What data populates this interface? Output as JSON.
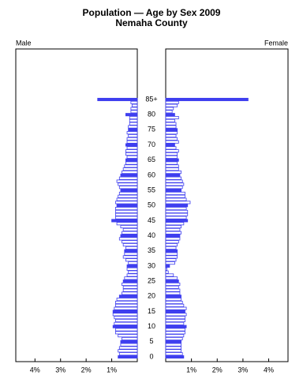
{
  "chart_data": {
    "type": "pyramid",
    "title": "Population — Age by Sex 2009",
    "subtitle": "Nemaha County",
    "categories": [
      "0",
      null,
      null,
      null,
      null,
      "5",
      null,
      null,
      null,
      null,
      "10",
      null,
      null,
      null,
      null,
      "15",
      null,
      null,
      null,
      null,
      "20",
      null,
      null,
      null,
      null,
      "25",
      null,
      null,
      null,
      null,
      "30",
      null,
      null,
      null,
      null,
      "35",
      null,
      null,
      null,
      null,
      "40",
      null,
      null,
      null,
      null,
      "45",
      null,
      null,
      null,
      null,
      "50",
      null,
      null,
      null,
      null,
      "55",
      null,
      null,
      null,
      null,
      "60",
      null,
      null,
      null,
      null,
      "65",
      null,
      null,
      null,
      null,
      "70",
      null,
      null,
      null,
      null,
      "75",
      null,
      null,
      null,
      null,
      "80",
      null,
      null,
      null,
      null,
      "85+"
    ],
    "series": [
      {
        "name": "Male",
        "color": "#3f3fef",
        "values": [
          0.75,
          0.7,
          0.75,
          0.7,
          0.65,
          0.65,
          0.6,
          0.75,
          0.85,
          0.85,
          0.95,
          0.9,
          0.85,
          0.9,
          0.95,
          0.95,
          0.9,
          0.85,
          0.85,
          0.8,
          0.7,
          0.6,
          0.55,
          0.55,
          0.6,
          0.55,
          0.5,
          0.4,
          0.35,
          0.4,
          0.4,
          0.35,
          0.45,
          0.55,
          0.5,
          0.5,
          0.45,
          0.55,
          0.6,
          0.7,
          0.65,
          0.6,
          0.55,
          0.65,
          0.8,
          1.0,
          0.85,
          0.85,
          0.85,
          0.85,
          0.8,
          0.85,
          0.8,
          0.75,
          0.7,
          0.65,
          0.7,
          0.75,
          0.8,
          0.7,
          0.65,
          0.6,
          0.55,
          0.5,
          0.45,
          0.45,
          0.4,
          0.45,
          0.45,
          0.4,
          0.45,
          0.4,
          0.4,
          0.35,
          0.4,
          0.35,
          0.35,
          0.3,
          0.3,
          0.3,
          0.45,
          0.25,
          0.25,
          0.2,
          0.25,
          1.55
        ]
      },
      {
        "name": "Female",
        "color": "#3f3fef",
        "values": [
          0.7,
          0.65,
          0.6,
          0.6,
          0.6,
          0.6,
          0.65,
          0.7,
          0.75,
          0.75,
          0.8,
          0.7,
          0.75,
          0.75,
          0.8,
          0.75,
          0.8,
          0.7,
          0.65,
          0.6,
          0.6,
          0.55,
          0.55,
          0.5,
          0.55,
          0.5,
          0.45,
          0.3,
          0.1,
          0.05,
          0.15,
          0.35,
          0.4,
          0.45,
          0.45,
          0.45,
          0.4,
          0.45,
          0.5,
          0.55,
          0.55,
          0.6,
          0.55,
          0.6,
          0.7,
          0.85,
          0.8,
          0.85,
          0.85,
          0.8,
          0.85,
          0.95,
          0.8,
          0.75,
          0.75,
          0.6,
          0.65,
          0.7,
          0.65,
          0.6,
          0.55,
          0.6,
          0.5,
          0.5,
          0.45,
          0.5,
          0.45,
          0.45,
          0.5,
          0.4,
          0.35,
          0.5,
          0.45,
          0.4,
          0.45,
          0.45,
          0.4,
          0.4,
          0.35,
          0.5,
          0.35,
          0.25,
          0.3,
          0.45,
          0.5,
          3.2
        ]
      }
    ],
    "xlim": [
      0,
      4.75
    ],
    "xticks": [
      {
        "value": 1,
        "label": "1%"
      },
      {
        "value": 2,
        "label": "2%"
      },
      {
        "value": 3,
        "label": "3%"
      },
      {
        "value": 4,
        "label": "4%"
      }
    ]
  }
}
